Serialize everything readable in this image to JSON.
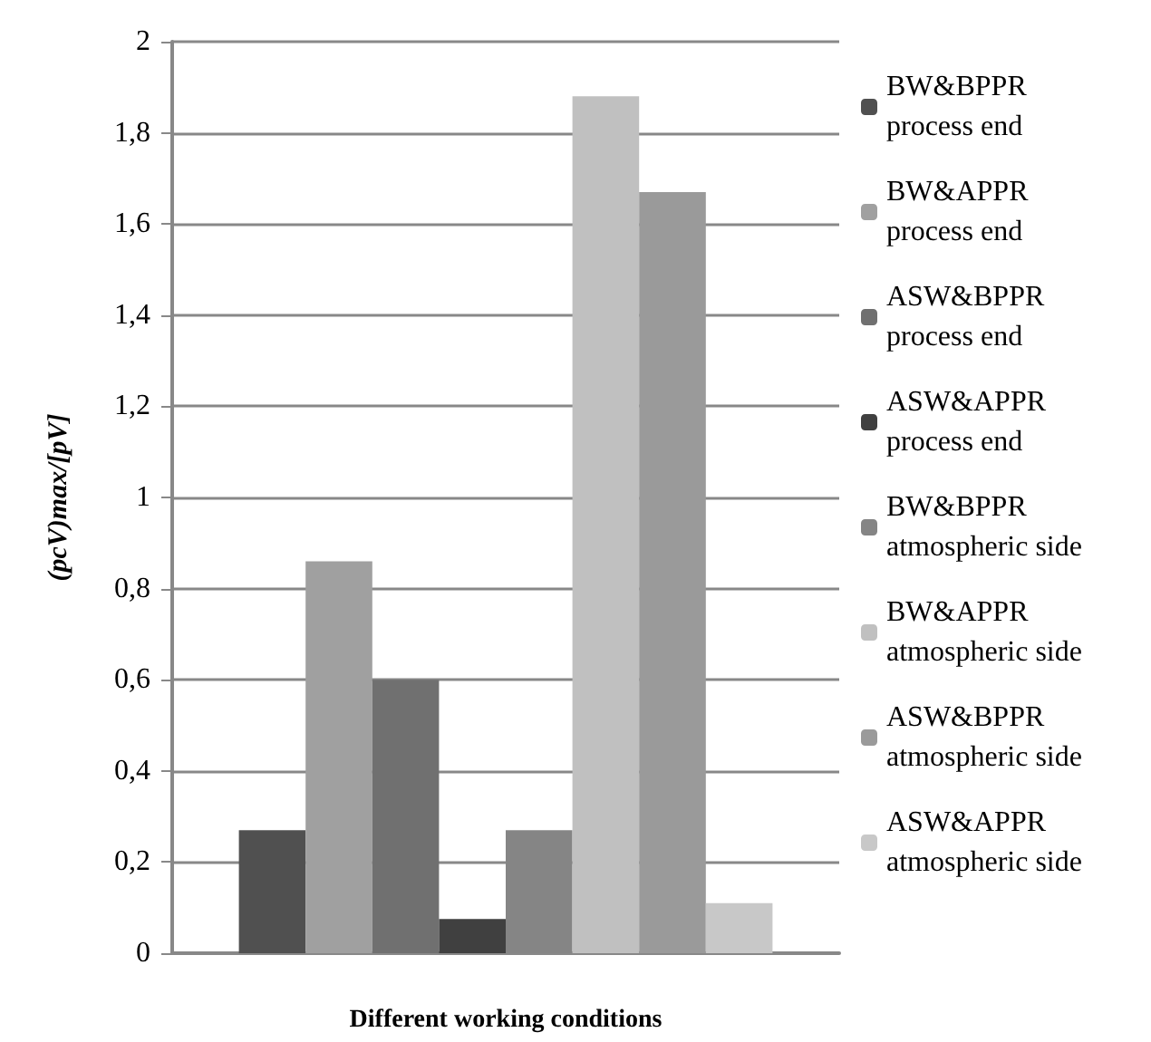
{
  "chart_data": {
    "type": "bar",
    "xlabel": "Different working conditions",
    "ylabel": "(pcV)max/[pV]",
    "categories": [
      null
    ],
    "series": [
      {
        "name": "BW&BPPR process end",
        "color": "#505050",
        "values": [
          0.27
        ]
      },
      {
        "name": "BW&APPR process end",
        "color": "#a0a0a0",
        "values": [
          0.86
        ]
      },
      {
        "name": "ASW&BPPR process end",
        "color": "#707070",
        "values": [
          0.6
        ]
      },
      {
        "name": "ASW&APPR process end",
        "color": "#404040",
        "values": [
          0.075
        ]
      },
      {
        "name": "BW&BPPR atmospheric side",
        "color": "#858585",
        "values": [
          0.27
        ]
      },
      {
        "name": "BW&APPR atmospheric side",
        "color": "#c0c0c0",
        "values": [
          1.88
        ]
      },
      {
        "name": "ASW&BPPR atmospheric side",
        "color": "#9a9a9a",
        "values": [
          1.67
        ]
      },
      {
        "name": "ASW&APPR atmospheric side",
        "color": "#c8c8c8",
        "values": [
          0.11
        ]
      }
    ],
    "ylim": [
      0,
      2
    ],
    "yticks": [
      0,
      {
        "value": 0.2,
        "label": "0,2"
      },
      {
        "value": 0.4,
        "label": "0,4"
      },
      {
        "value": 0.6,
        "label": "0,6"
      },
      {
        "value": 0.8,
        "label": "0,8"
      },
      1,
      {
        "value": 1.2,
        "label": "1,2"
      },
      {
        "value": 1.4,
        "label": "1,4"
      },
      {
        "value": 1.6,
        "label": "1,6"
      },
      {
        "value": 1.8,
        "label": "1,8"
      },
      2
    ],
    "grid": "y",
    "legend": "right"
  }
}
